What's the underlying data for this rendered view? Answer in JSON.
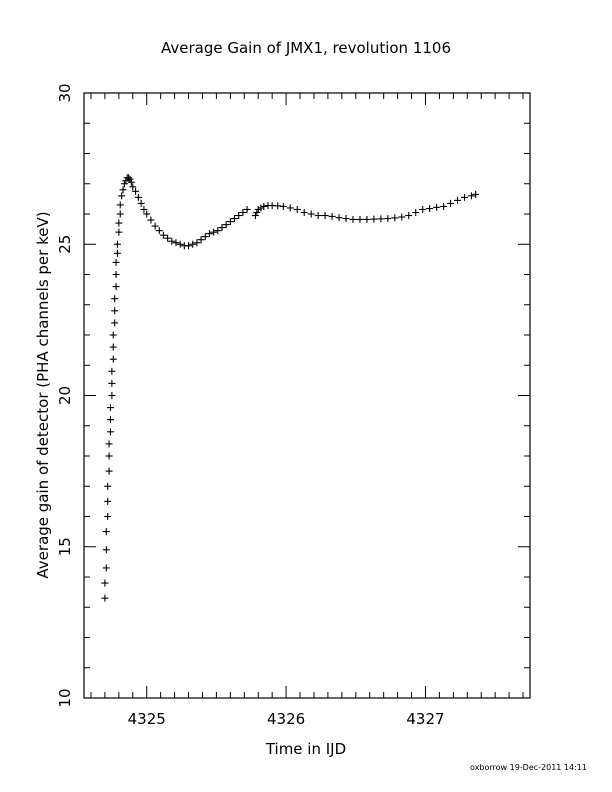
{
  "chart_data": {
    "type": "scatter",
    "title": "Average Gain of JMX1, revolution 1106",
    "xlabel": "Time in IJD",
    "ylabel": "Average gain of detector (PHA channels per keV)",
    "xlim": [
      4324.55,
      4327.75
    ],
    "ylim": [
      10,
      30
    ],
    "x_ticks": [
      "4325",
      "4326",
      "4327"
    ],
    "y_ticks": [
      "10",
      "15",
      "20",
      "25",
      "30"
    ],
    "grid": false,
    "legend": "none",
    "marker": "plus",
    "series": [
      {
        "x": [
          4324.7,
          4324.7,
          4324.71,
          4324.71,
          4324.71,
          4324.72,
          4324.72,
          4324.72,
          4324.73,
          4324.73,
          4324.73,
          4324.74,
          4324.74,
          4324.74,
          4324.75,
          4324.75,
          4324.75,
          4324.76,
          4324.76,
          4324.76,
          4324.77,
          4324.77,
          4324.77,
          4324.78,
          4324.78,
          4324.78,
          4324.79,
          4324.79,
          4324.8,
          4324.8,
          4324.81,
          4324.81,
          4324.82,
          4324.83,
          4324.84,
          4324.85,
          4324.86,
          4324.87,
          4324.88,
          4324.89,
          4324.9,
          4324.92,
          4324.94,
          4324.96,
          4324.98,
          4325.0,
          4325.03,
          4325.06,
          4325.09,
          4325.12,
          4325.15,
          4325.18,
          4325.21,
          4325.24,
          4325.27,
          4325.3,
          4325.33,
          4325.36,
          4325.39,
          4325.42,
          4325.45,
          4325.48,
          4325.51,
          4325.54,
          4325.57,
          4325.6,
          4325.63,
          4325.66,
          4325.69,
          4325.72,
          4325.78,
          4325.79,
          4325.8,
          4325.82,
          4325.84,
          4325.87,
          4325.9,
          4325.94,
          4325.98,
          4326.03,
          4326.08,
          4326.13,
          4326.18,
          4326.23,
          4326.28,
          4326.33,
          4326.38,
          4326.43,
          4326.48,
          4326.53,
          4326.58,
          4326.63,
          4326.68,
          4326.73,
          4326.78,
          4326.83,
          4326.88,
          4326.93,
          4326.98,
          4327.03,
          4327.08,
          4327.13,
          4327.18,
          4327.23,
          4327.28,
          4327.33,
          4327.36
        ],
        "y": [
          13.3,
          13.8,
          14.3,
          14.9,
          15.5,
          16.0,
          16.5,
          17.0,
          17.5,
          18.0,
          18.4,
          18.8,
          19.2,
          19.6,
          20.0,
          20.4,
          20.8,
          21.2,
          21.6,
          22.0,
          22.4,
          22.8,
          23.2,
          23.6,
          24.0,
          24.4,
          24.7,
          25.0,
          25.4,
          25.7,
          26.0,
          26.3,
          26.6,
          26.8,
          27.0,
          27.1,
          27.2,
          27.2,
          27.15,
          27.05,
          26.9,
          26.75,
          26.55,
          26.35,
          26.15,
          26.0,
          25.8,
          25.6,
          25.45,
          25.3,
          25.2,
          25.1,
          25.05,
          25.0,
          24.95,
          24.95,
          25.0,
          25.05,
          25.15,
          25.25,
          25.35,
          25.4,
          25.45,
          25.55,
          25.65,
          25.75,
          25.85,
          25.95,
          26.05,
          26.15,
          25.95,
          26.05,
          26.15,
          26.2,
          26.25,
          26.28,
          26.28,
          26.27,
          26.25,
          26.2,
          26.15,
          26.05,
          26.0,
          25.95,
          25.95,
          25.92,
          25.88,
          25.85,
          25.82,
          25.82,
          25.82,
          25.83,
          25.84,
          25.85,
          25.87,
          25.9,
          25.95,
          26.05,
          26.15,
          26.18,
          26.22,
          26.25,
          26.35,
          26.45,
          26.55,
          26.6,
          26.65
        ]
      }
    ]
  },
  "footer": "oxborrow 19-Dec-2011 14:11"
}
